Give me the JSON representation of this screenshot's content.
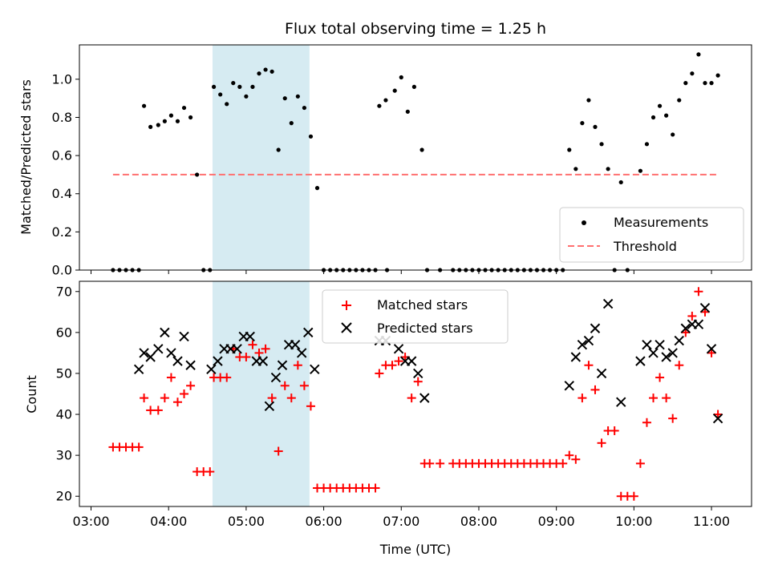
{
  "title": "Flux total observing time = 1.25 h",
  "colors": {
    "measurement": "#000000",
    "threshold": "#ff7070",
    "matched": "#ff0000",
    "predicted": "#000000",
    "highlight": "#add8e6"
  },
  "chart_data": [
    {
      "type": "scatter",
      "title": "Flux total observing time = 1.25 h",
      "xlabel": "",
      "ylabel": "Matched/Predicted stars",
      "xlim": [
        "02:51",
        "11:31"
      ],
      "ylim": [
        0,
        1.18
      ],
      "yticks": [
        "0.0",
        "0.2",
        "0.4",
        "0.6",
        "0.8",
        "1.0"
      ],
      "highlight_span": [
        "04:34",
        "05:49"
      ],
      "legend": {
        "placement": "lower right",
        "entries": [
          "Measurements",
          "Threshold"
        ]
      },
      "series": [
        {
          "name": "Measurements",
          "marker": "dot",
          "points": [
            [
              "03:17",
              0
            ],
            [
              "03:22",
              0
            ],
            [
              "03:27",
              0
            ],
            [
              "03:32",
              0
            ],
            [
              "03:37",
              0
            ],
            [
              "03:41",
              0.86
            ],
            [
              "03:46",
              0.75
            ],
            [
              "03:52",
              0.76
            ],
            [
              "03:57",
              0.78
            ],
            [
              "04:02",
              0.81
            ],
            [
              "04:07",
              0.78
            ],
            [
              "04:12",
              0.85
            ],
            [
              "04:17",
              0.8
            ],
            [
              "04:22",
              0.5
            ],
            [
              "04:27",
              0
            ],
            [
              "04:32",
              0
            ],
            [
              "04:35",
              0.96
            ],
            [
              "04:40",
              0.92
            ],
            [
              "04:45",
              0.87
            ],
            [
              "04:50",
              0.98
            ],
            [
              "04:55",
              0.96
            ],
            [
              "05:00",
              0.91
            ],
            [
              "05:05",
              0.96
            ],
            [
              "05:10",
              1.03
            ],
            [
              "05:15",
              1.05
            ],
            [
              "05:20",
              1.04
            ],
            [
              "05:25",
              0.63
            ],
            [
              "05:30",
              0.9
            ],
            [
              "05:35",
              0.77
            ],
            [
              "05:40",
              0.91
            ],
            [
              "05:45",
              0.85
            ],
            [
              "05:50",
              0.7
            ],
            [
              "05:55",
              0.43
            ],
            [
              "06:00",
              0
            ],
            [
              "06:05",
              0
            ],
            [
              "06:10",
              0
            ],
            [
              "06:15",
              0
            ],
            [
              "06:20",
              0
            ],
            [
              "06:25",
              0
            ],
            [
              "06:30",
              0
            ],
            [
              "06:35",
              0
            ],
            [
              "06:40",
              0
            ],
            [
              "06:43",
              0.86
            ],
            [
              "06:48",
              0.89
            ],
            [
              "06:49",
              0
            ],
            [
              "06:55",
              0.94
            ],
            [
              "07:00",
              1.01
            ],
            [
              "07:05",
              0.83
            ],
            [
              "07:10",
              0.96
            ],
            [
              "07:16",
              0.63
            ],
            [
              "07:20",
              0
            ],
            [
              "07:30",
              0
            ],
            [
              "07:40",
              0
            ],
            [
              "07:45",
              0
            ],
            [
              "07:50",
              0
            ],
            [
              "07:55",
              0
            ],
            [
              "08:00",
              0
            ],
            [
              "08:05",
              0
            ],
            [
              "08:10",
              0
            ],
            [
              "08:15",
              0
            ],
            [
              "08:20",
              0
            ],
            [
              "08:25",
              0
            ],
            [
              "08:30",
              0
            ],
            [
              "08:35",
              0
            ],
            [
              "08:40",
              0
            ],
            [
              "08:45",
              0
            ],
            [
              "08:50",
              0
            ],
            [
              "08:55",
              0
            ],
            [
              "09:00",
              0
            ],
            [
              "09:05",
              0
            ],
            [
              "09:10",
              0.63
            ],
            [
              "09:15",
              0.53
            ],
            [
              "09:20",
              0.77
            ],
            [
              "09:25",
              0.89
            ],
            [
              "09:30",
              0.75
            ],
            [
              "09:35",
              0.66
            ],
            [
              "09:40",
              0.53
            ],
            [
              "09:45",
              0
            ],
            [
              "09:50",
              0.46
            ],
            [
              "09:55",
              0
            ],
            [
              "10:05",
              0.52
            ],
            [
              "10:10",
              0.66
            ],
            [
              "10:15",
              0.8
            ],
            [
              "10:20",
              0.86
            ],
            [
              "10:25",
              0.81
            ],
            [
              "10:30",
              0.71
            ],
            [
              "10:35",
              0.89
            ],
            [
              "10:40",
              0.98
            ],
            [
              "10:45",
              1.03
            ],
            [
              "10:50",
              1.13
            ],
            [
              "10:55",
              0.98
            ],
            [
              "11:00",
              0.98
            ],
            [
              "11:05",
              1.02
            ]
          ]
        },
        {
          "name": "Threshold",
          "style": "dashed",
          "points": [
            [
              "03:17",
              0.5
            ],
            [
              "11:05",
              0.5
            ]
          ]
        }
      ]
    },
    {
      "type": "scatter",
      "title": "",
      "xlabel": "Time (UTC)",
      "ylabel": "Count",
      "xlim": [
        "02:51",
        "11:31"
      ],
      "ylim": [
        17.5,
        72.5
      ],
      "yticks": [
        "20",
        "30",
        "40",
        "50",
        "60",
        "70"
      ],
      "xticks": [
        "03:00",
        "04:00",
        "05:00",
        "06:00",
        "07:00",
        "08:00",
        "09:00",
        "10:00",
        "11:00"
      ],
      "highlight_span": [
        "04:34",
        "05:49"
      ],
      "legend": {
        "placement": "top center",
        "entries": [
          "Matched stars",
          "Predicted stars"
        ]
      },
      "series": [
        {
          "name": "Matched stars",
          "marker": "plus",
          "points": [
            [
              "03:17",
              32
            ],
            [
              "03:22",
              32
            ],
            [
              "03:27",
              32
            ],
            [
              "03:32",
              32
            ],
            [
              "03:37",
              32
            ],
            [
              "03:41",
              44
            ],
            [
              "03:46",
              41
            ],
            [
              "03:52",
              41
            ],
            [
              "03:57",
              44
            ],
            [
              "04:02",
              49
            ],
            [
              "04:07",
              43
            ],
            [
              "04:12",
              45
            ],
            [
              "04:17",
              47
            ],
            [
              "04:22",
              26
            ],
            [
              "04:27",
              26
            ],
            [
              "04:32",
              26
            ],
            [
              "04:35",
              49
            ],
            [
              "04:40",
              49
            ],
            [
              "04:45",
              49
            ],
            [
              "04:50",
              56
            ],
            [
              "04:55",
              54
            ],
            [
              "05:00",
              54
            ],
            [
              "05:05",
              57
            ],
            [
              "05:10",
              55
            ],
            [
              "05:15",
              56
            ],
            [
              "05:20",
              44
            ],
            [
              "05:25",
              31
            ],
            [
              "05:30",
              47
            ],
            [
              "05:35",
              44
            ],
            [
              "05:40",
              52
            ],
            [
              "05:45",
              47
            ],
            [
              "05:50",
              42
            ],
            [
              "05:55",
              22
            ],
            [
              "06:00",
              22
            ],
            [
              "06:05",
              22
            ],
            [
              "06:10",
              22
            ],
            [
              "06:15",
              22
            ],
            [
              "06:20",
              22
            ],
            [
              "06:25",
              22
            ],
            [
              "06:30",
              22
            ],
            [
              "06:35",
              22
            ],
            [
              "06:40",
              22
            ],
            [
              "06:43",
              50
            ],
            [
              "06:48",
              52
            ],
            [
              "06:53",
              52
            ],
            [
              "06:58",
              53
            ],
            [
              "07:03",
              54
            ],
            [
              "07:08",
              44
            ],
            [
              "07:13",
              48
            ],
            [
              "07:18",
              28
            ],
            [
              "07:22",
              28
            ],
            [
              "07:30",
              28
            ],
            [
              "07:40",
              28
            ],
            [
              "07:45",
              28
            ],
            [
              "07:50",
              28
            ],
            [
              "07:55",
              28
            ],
            [
              "08:00",
              28
            ],
            [
              "08:05",
              28
            ],
            [
              "08:10",
              28
            ],
            [
              "08:15",
              28
            ],
            [
              "08:20",
              28
            ],
            [
              "08:25",
              28
            ],
            [
              "08:30",
              28
            ],
            [
              "08:35",
              28
            ],
            [
              "08:40",
              28
            ],
            [
              "08:45",
              28
            ],
            [
              "08:50",
              28
            ],
            [
              "08:55",
              28
            ],
            [
              "09:00",
              28
            ],
            [
              "09:05",
              28
            ],
            [
              "09:10",
              30
            ],
            [
              "09:15",
              29
            ],
            [
              "09:20",
              44
            ],
            [
              "09:25",
              52
            ],
            [
              "09:30",
              46
            ],
            [
              "09:35",
              33
            ],
            [
              "09:40",
              36
            ],
            [
              "09:45",
              36
            ],
            [
              "09:50",
              20
            ],
            [
              "09:55",
              20
            ],
            [
              "10:00",
              20
            ],
            [
              "10:05",
              28
            ],
            [
              "10:10",
              38
            ],
            [
              "10:15",
              44
            ],
            [
              "10:20",
              49
            ],
            [
              "10:25",
              44
            ],
            [
              "10:30",
              39
            ],
            [
              "10:35",
              52
            ],
            [
              "10:40",
              60
            ],
            [
              "10:45",
              64
            ],
            [
              "10:50",
              70
            ],
            [
              "10:55",
              65
            ],
            [
              "11:00",
              55
            ],
            [
              "11:05",
              40
            ]
          ]
        },
        {
          "name": "Predicted stars",
          "marker": "x",
          "points": [
            [
              "03:37",
              51
            ],
            [
              "03:41",
              55
            ],
            [
              "03:46",
              54
            ],
            [
              "03:52",
              56
            ],
            [
              "03:57",
              60
            ],
            [
              "04:02",
              55
            ],
            [
              "04:07",
              53
            ],
            [
              "04:12",
              59
            ],
            [
              "04:17",
              52
            ],
            [
              "04:33",
              51
            ],
            [
              "04:38",
              53
            ],
            [
              "04:43",
              56
            ],
            [
              "04:48",
              56
            ],
            [
              "04:53",
              56
            ],
            [
              "04:58",
              59
            ],
            [
              "05:03",
              59
            ],
            [
              "05:08",
              53
            ],
            [
              "05:13",
              53
            ],
            [
              "05:18",
              42
            ],
            [
              "05:23",
              49
            ],
            [
              "05:28",
              52
            ],
            [
              "05:33",
              57
            ],
            [
              "05:38",
              57
            ],
            [
              "05:43",
              55
            ],
            [
              "05:48",
              60
            ],
            [
              "05:53",
              51
            ],
            [
              "06:43",
              58
            ],
            [
              "06:48",
              58
            ],
            [
              "06:58",
              56
            ],
            [
              "07:03",
              53
            ],
            [
              "07:08",
              53
            ],
            [
              "07:13",
              50
            ],
            [
              "07:18",
              44
            ],
            [
              "09:10",
              47
            ],
            [
              "09:15",
              54
            ],
            [
              "09:20",
              57
            ],
            [
              "09:25",
              58
            ],
            [
              "09:30",
              61
            ],
            [
              "09:35",
              50
            ],
            [
              "09:40",
              67
            ],
            [
              "09:50",
              43
            ],
            [
              "10:05",
              53
            ],
            [
              "10:10",
              57
            ],
            [
              "10:15",
              55
            ],
            [
              "10:20",
              57
            ],
            [
              "10:25",
              54
            ],
            [
              "10:30",
              55
            ],
            [
              "10:35",
              58
            ],
            [
              "10:40",
              61
            ],
            [
              "10:45",
              62
            ],
            [
              "10:50",
              62
            ],
            [
              "10:55",
              66
            ],
            [
              "11:00",
              56
            ],
            [
              "11:05",
              39
            ]
          ]
        }
      ]
    }
  ]
}
